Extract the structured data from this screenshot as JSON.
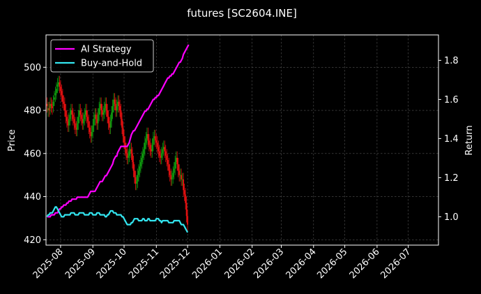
{
  "chart_data": {
    "type": "line",
    "title": "futures [SC2604.INE]",
    "xlabel": "",
    "ylabel_left": "Price",
    "ylabel_right": "Return",
    "x_ticks": [
      "2025-08",
      "2025-09",
      "2025-10",
      "2025-11",
      "2025-12",
      "2026-01",
      "2026-02",
      "2026-03",
      "2026-04",
      "2026-05",
      "2026-06",
      "2026-07"
    ],
    "x_tick_dates": [
      "2025-08-01",
      "2025-09-01",
      "2025-10-01",
      "2025-11-01",
      "2025-12-01",
      "2026-01-01",
      "2026-02-01",
      "2026-03-01",
      "2026-04-01",
      "2026-05-01",
      "2026-06-01",
      "2026-07-01"
    ],
    "x_range": [
      "2025-07-18",
      "2026-07-30"
    ],
    "ylim_left": [
      417.5,
      515
    ],
    "yticks_left": [
      420,
      440,
      460,
      480,
      500
    ],
    "ylim_right": [
      0.855,
      1.93
    ],
    "yticks_right": [
      1.0,
      1.2,
      1.4,
      1.6,
      1.8
    ],
    "grid": true,
    "legend_position": "top-left",
    "colors": {
      "background": "#000000",
      "ai": "#ff00ff",
      "bh": "#33e6f0",
      "up": "#0fa00f",
      "down": "#ee1111",
      "grid": "#555555"
    },
    "candles": {
      "start": "2025-07-19",
      "step_days": 1,
      "close": [
        482,
        481,
        480,
        483,
        482,
        481,
        484,
        486,
        488,
        490,
        492,
        493,
        491,
        489,
        487,
        484,
        483,
        480,
        477,
        475,
        473,
        476,
        478,
        480,
        478,
        476,
        474,
        472,
        471,
        474,
        477,
        480,
        478,
        476,
        474,
        476,
        478,
        480,
        477,
        475,
        472,
        470,
        468,
        470,
        473,
        476,
        478,
        476,
        474,
        478,
        481,
        483,
        480,
        478,
        479,
        481,
        483,
        480,
        477,
        474,
        472,
        475,
        479,
        482,
        485,
        483,
        480,
        482,
        484,
        482,
        480,
        476,
        472,
        468,
        465,
        462,
        460,
        458,
        459,
        461,
        462,
        460,
        456,
        452,
        449,
        446,
        447,
        450,
        452,
        454,
        456,
        458,
        460,
        462,
        465,
        467,
        469,
        466,
        464,
        462,
        461,
        464,
        467,
        468,
        466,
        465,
        463,
        461,
        459,
        458,
        460,
        462,
        463,
        461,
        459,
        457,
        455,
        452,
        450,
        448,
        449,
        451,
        453,
        456,
        458,
        455,
        452,
        450,
        450,
        448,
        448,
        443,
        441,
        437,
        431,
        427
      ],
      "open_delta": [
        1,
        -1,
        1,
        -2,
        1,
        1,
        -2,
        -1,
        -1,
        -2,
        -1,
        -1,
        2,
        2,
        2,
        3,
        1,
        3,
        3,
        2,
        2,
        -3,
        -2,
        -2,
        2,
        2,
        2,
        2,
        1,
        -3,
        -3,
        -3,
        2,
        2,
        2,
        -2,
        -2,
        -2,
        3,
        2,
        3,
        2,
        2,
        -2,
        -3,
        -3,
        -2,
        2,
        2,
        -4,
        -3,
        -2,
        3,
        2,
        -1,
        -2,
        -2,
        3,
        3,
        3,
        2,
        -3,
        -4,
        -3,
        -3,
        2,
        3,
        -2,
        -2,
        2,
        2,
        4,
        4,
        4,
        3,
        3,
        2,
        2,
        -1,
        -2,
        -1,
        2,
        4,
        4,
        3,
        3,
        -1,
        -3,
        -2,
        -2,
        -2,
        -2,
        -2,
        -2,
        -3,
        -2,
        -2,
        3,
        2,
        2,
        1,
        -3,
        -3,
        -1,
        2,
        1,
        2,
        2,
        2,
        1,
        -2,
        -2,
        -1,
        2,
        2,
        2,
        2,
        3,
        2,
        2,
        -1,
        -2,
        -2,
        -3,
        -2,
        3,
        3,
        2,
        0,
        2,
        0,
        5,
        2,
        4,
        6,
        4
      ],
      "wick": 3
    },
    "series": [
      {
        "name": "AI Strategy",
        "axis": "right",
        "start": "2025-07-19",
        "step_days": 1,
        "values": [
          1.0,
          1.0,
          1.0,
          1.0,
          1.01,
          1.01,
          1.01,
          1.01,
          1.02,
          1.02,
          1.02,
          1.03,
          1.04,
          1.04,
          1.05,
          1.05,
          1.06,
          1.06,
          1.06,
          1.07,
          1.07,
          1.08,
          1.08,
          1.08,
          1.09,
          1.09,
          1.09,
          1.09,
          1.09,
          1.1,
          1.1,
          1.1,
          1.1,
          1.1,
          1.1,
          1.1,
          1.1,
          1.1,
          1.1,
          1.1,
          1.11,
          1.12,
          1.13,
          1.13,
          1.13,
          1.13,
          1.13,
          1.14,
          1.15,
          1.16,
          1.17,
          1.18,
          1.18,
          1.18,
          1.19,
          1.2,
          1.21,
          1.21,
          1.22,
          1.23,
          1.24,
          1.25,
          1.26,
          1.27,
          1.29,
          1.3,
          1.31,
          1.31,
          1.33,
          1.34,
          1.35,
          1.36,
          1.36,
          1.36,
          1.36,
          1.36,
          1.36,
          1.36,
          1.37,
          1.38,
          1.4,
          1.42,
          1.43,
          1.44,
          1.44,
          1.45,
          1.46,
          1.47,
          1.48,
          1.49,
          1.5,
          1.51,
          1.52,
          1.53,
          1.54,
          1.54,
          1.55,
          1.55,
          1.56,
          1.57,
          1.58,
          1.59,
          1.6,
          1.6,
          1.61,
          1.61,
          1.62,
          1.62,
          1.63,
          1.64,
          1.65,
          1.66,
          1.67,
          1.68,
          1.69,
          1.7,
          1.71,
          1.71,
          1.72,
          1.72,
          1.73,
          1.73,
          1.74,
          1.75,
          1.76,
          1.77,
          1.78,
          1.79,
          1.79,
          1.8,
          1.81,
          1.83,
          1.84,
          1.85,
          1.86,
          1.87,
          1.88
        ]
      },
      {
        "name": "Buy-and-Hold",
        "axis": "right",
        "start": "2025-07-19",
        "step_days": 1,
        "values": [
          1.0,
          1.01,
          1.01,
          1.02,
          1.02,
          1.02,
          1.03,
          1.04,
          1.05,
          1.05,
          1.04,
          1.03,
          1.02,
          1.01,
          1.0,
          1.0,
          1.0,
          1.01,
          1.01,
          1.01,
          1.01,
          1.01,
          1.01,
          1.02,
          1.02,
          1.02,
          1.02,
          1.01,
          1.01,
          1.01,
          1.01,
          1.02,
          1.02,
          1.02,
          1.02,
          1.02,
          1.01,
          1.01,
          1.01,
          1.01,
          1.01,
          1.02,
          1.02,
          1.02,
          1.01,
          1.01,
          1.01,
          1.01,
          1.02,
          1.02,
          1.02,
          1.01,
          1.01,
          1.01,
          1.01,
          1.01,
          1.0,
          1.0,
          1.01,
          1.01,
          1.02,
          1.03,
          1.03,
          1.03,
          1.02,
          1.02,
          1.02,
          1.01,
          1.01,
          1.01,
          1.01,
          1.01,
          1.0,
          1.0,
          0.99,
          0.98,
          0.97,
          0.96,
          0.96,
          0.96,
          0.96,
          0.97,
          0.97,
          0.98,
          0.99,
          0.99,
          0.99,
          0.99,
          0.98,
          0.98,
          0.98,
          0.98,
          0.99,
          0.99,
          0.98,
          0.98,
          0.98,
          0.99,
          0.99,
          0.98,
          0.98,
          0.98,
          0.98,
          0.98,
          0.98,
          0.99,
          0.99,
          0.99,
          0.98,
          0.98,
          0.97,
          0.98,
          0.98,
          0.98,
          0.98,
          0.98,
          0.98,
          0.97,
          0.97,
          0.97,
          0.97,
          0.97,
          0.98,
          0.98,
          0.98,
          0.98,
          0.98,
          0.98,
          0.97,
          0.96,
          0.96,
          0.96,
          0.95,
          0.94,
          0.93,
          0.92
        ]
      }
    ]
  }
}
